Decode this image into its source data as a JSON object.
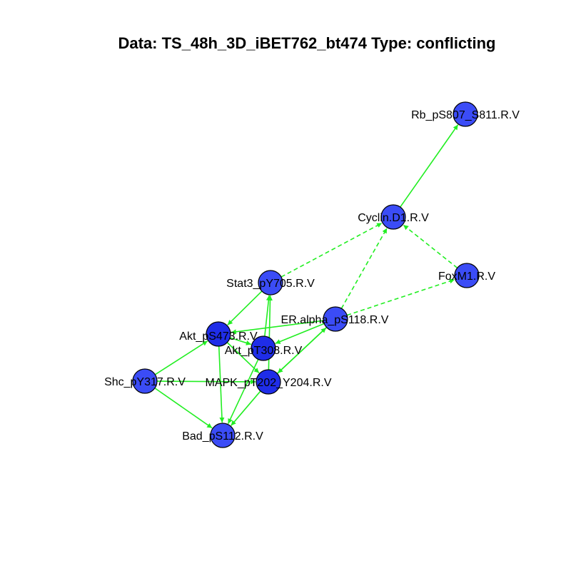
{
  "title": "Data: TS_48h_3D_iBET762_bt474 Type: conflicting",
  "colors": {
    "node": "#3b4cf6",
    "node_dark": "#1f2de8",
    "edge": "#22ee22",
    "outline": "#000000"
  },
  "nodes": [
    {
      "id": "rb",
      "label": "Rb_pS807_S811.R.V"
    },
    {
      "id": "cyclin",
      "label": "Cyclin.D1.R.V"
    },
    {
      "id": "foxm1",
      "label": "FoxM1.R.V"
    },
    {
      "id": "stat3",
      "label": "Stat3_pY705.R.V"
    },
    {
      "id": "eralpha",
      "label": "ER.alpha_pS118.R.V"
    },
    {
      "id": "akts473",
      "label": "Akt_pS473.R.V"
    },
    {
      "id": "aktt308",
      "label": "Akt_pT308.R.V"
    },
    {
      "id": "shc",
      "label": "Shc_pY317.R.V"
    },
    {
      "id": "mapk",
      "label": "MAPK_pT202_Y204.R.V"
    },
    {
      "id": "bad",
      "label": "Bad_pS112.R.V"
    }
  ],
  "edges": [
    {
      "from": "cyclin",
      "to": "rb",
      "style": "solid"
    },
    {
      "from": "foxm1",
      "to": "cyclin",
      "style": "dashed"
    },
    {
      "from": "stat3",
      "to": "cyclin",
      "style": "dashed"
    },
    {
      "from": "eralpha",
      "to": "cyclin",
      "style": "dashed"
    },
    {
      "from": "eralpha",
      "to": "foxm1",
      "style": "dashed"
    },
    {
      "from": "stat3",
      "to": "akts473",
      "style": "solid"
    },
    {
      "from": "aktt308",
      "to": "stat3",
      "style": "solid"
    },
    {
      "from": "mapk",
      "to": "stat3",
      "style": "solid"
    },
    {
      "from": "eralpha",
      "to": "akts473",
      "style": "solid"
    },
    {
      "from": "eralpha",
      "to": "aktt308",
      "style": "solid"
    },
    {
      "from": "mapk",
      "to": "eralpha",
      "style": "solid"
    },
    {
      "from": "eralpha",
      "to": "mapk",
      "style": "solid"
    },
    {
      "from": "shc",
      "to": "akts473",
      "style": "solid"
    },
    {
      "from": "shc",
      "to": "mapk",
      "style": "solid"
    },
    {
      "from": "akts473",
      "to": "mapk",
      "style": "solid"
    },
    {
      "from": "akts473",
      "to": "bad",
      "style": "solid"
    },
    {
      "from": "aktt308",
      "to": "bad",
      "style": "solid"
    },
    {
      "from": "mapk",
      "to": "bad",
      "style": "solid"
    },
    {
      "from": "shc",
      "to": "bad",
      "style": "solid"
    },
    {
      "from": "akts473",
      "to": "aktt308",
      "style": "solid"
    }
  ]
}
